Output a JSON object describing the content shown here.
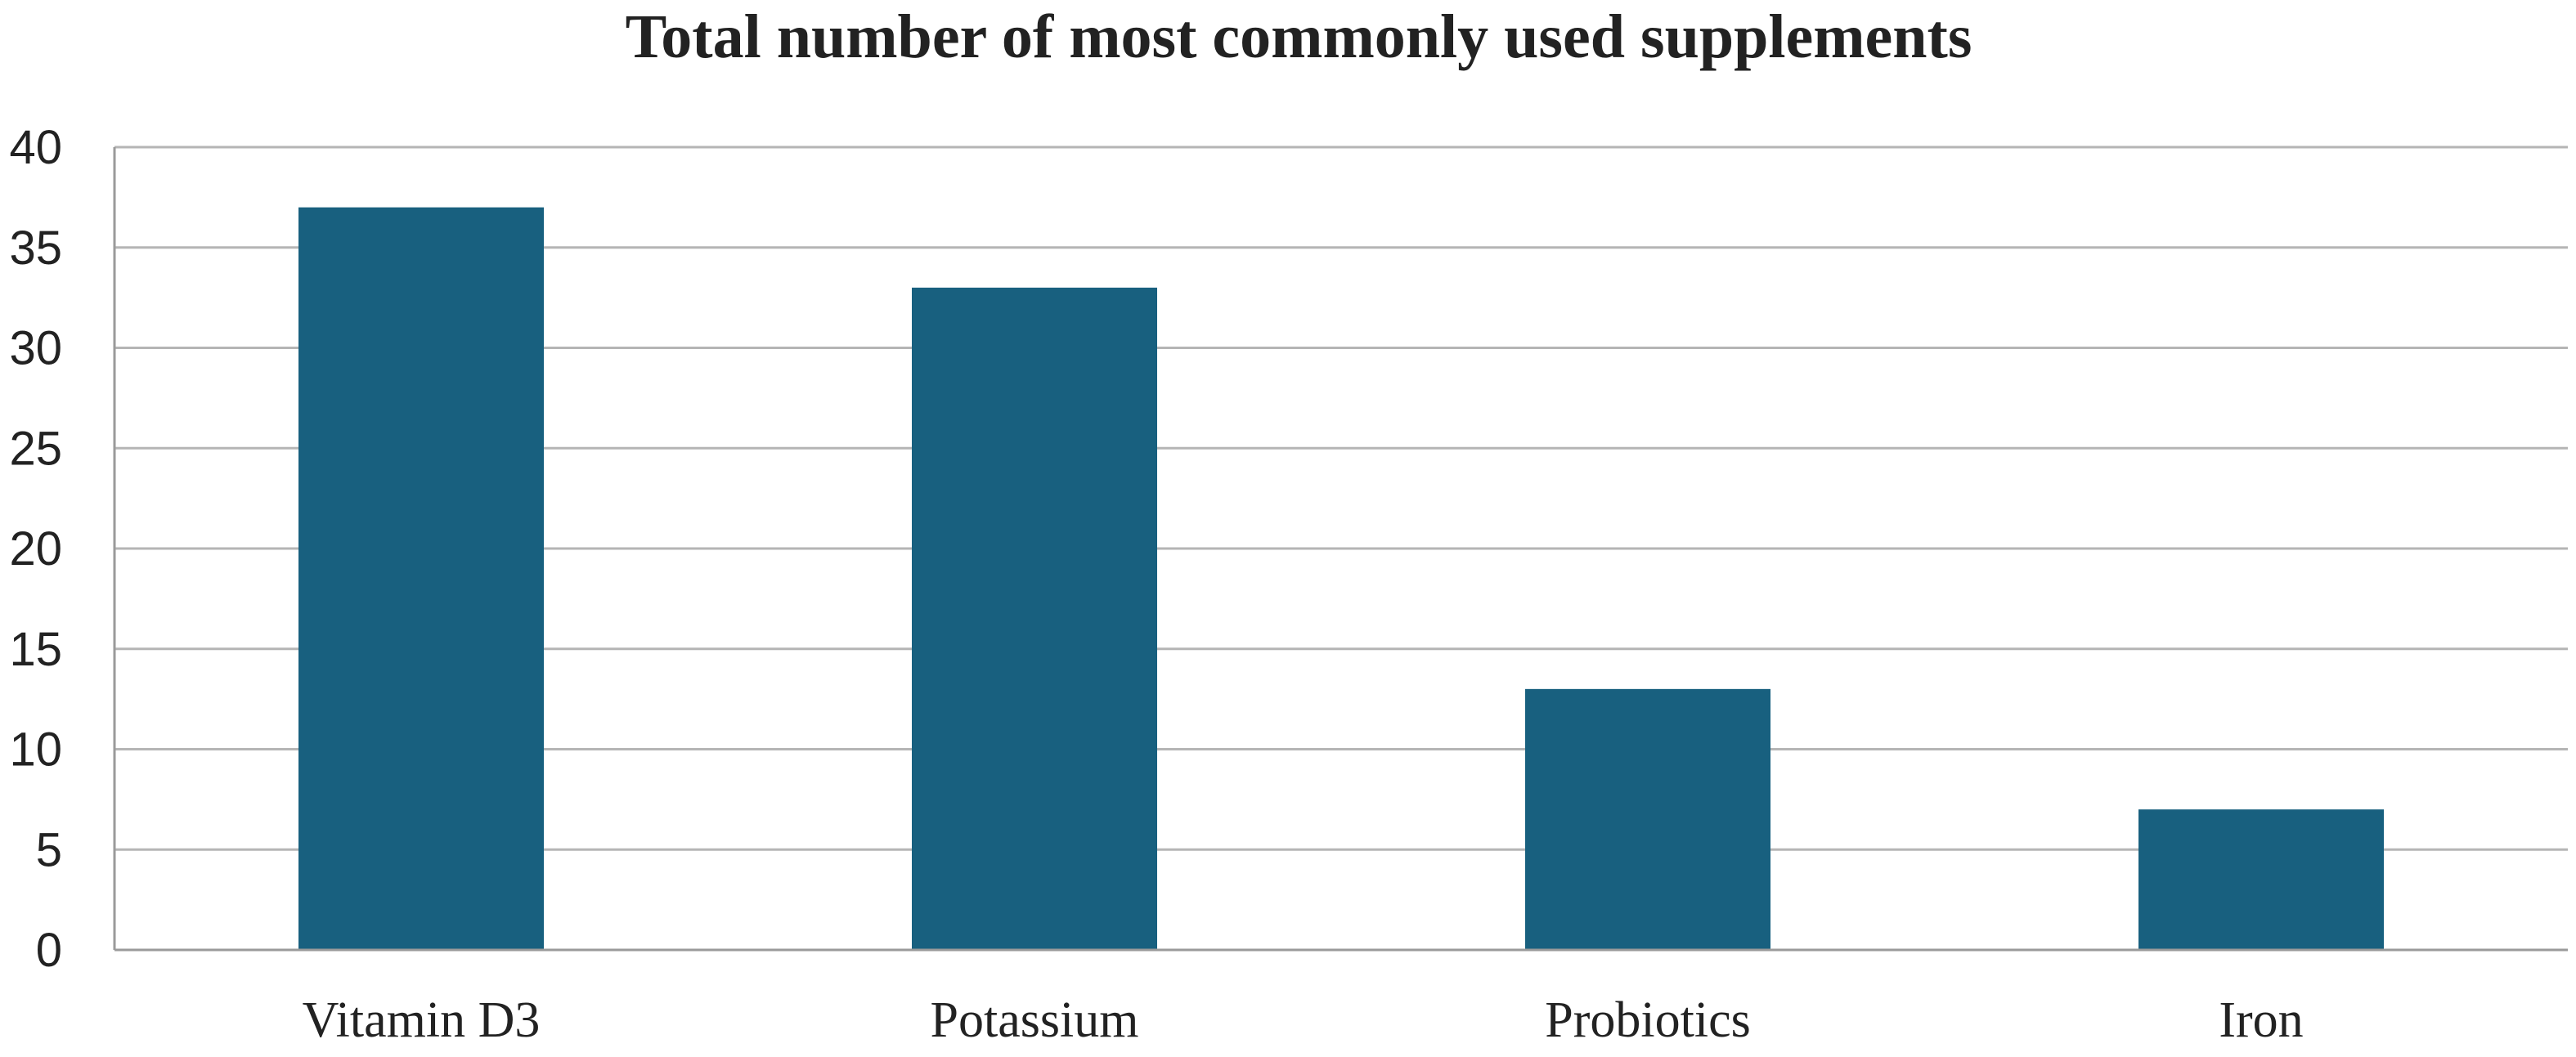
{
  "chart_data": {
    "type": "bar",
    "title": "Total number of most commonly used supplements",
    "xlabel": "",
    "ylabel": "",
    "categories": [
      "Vitamin D3",
      "Potassium",
      "Probiotics",
      "Iron"
    ],
    "values": [
      37,
      33,
      13,
      7
    ],
    "ylim": [
      0,
      40
    ],
    "yticks": [
      0,
      5,
      10,
      15,
      20,
      25,
      30,
      35,
      40
    ],
    "grid": true,
    "bar_color": "#18607f",
    "legend": "none"
  }
}
